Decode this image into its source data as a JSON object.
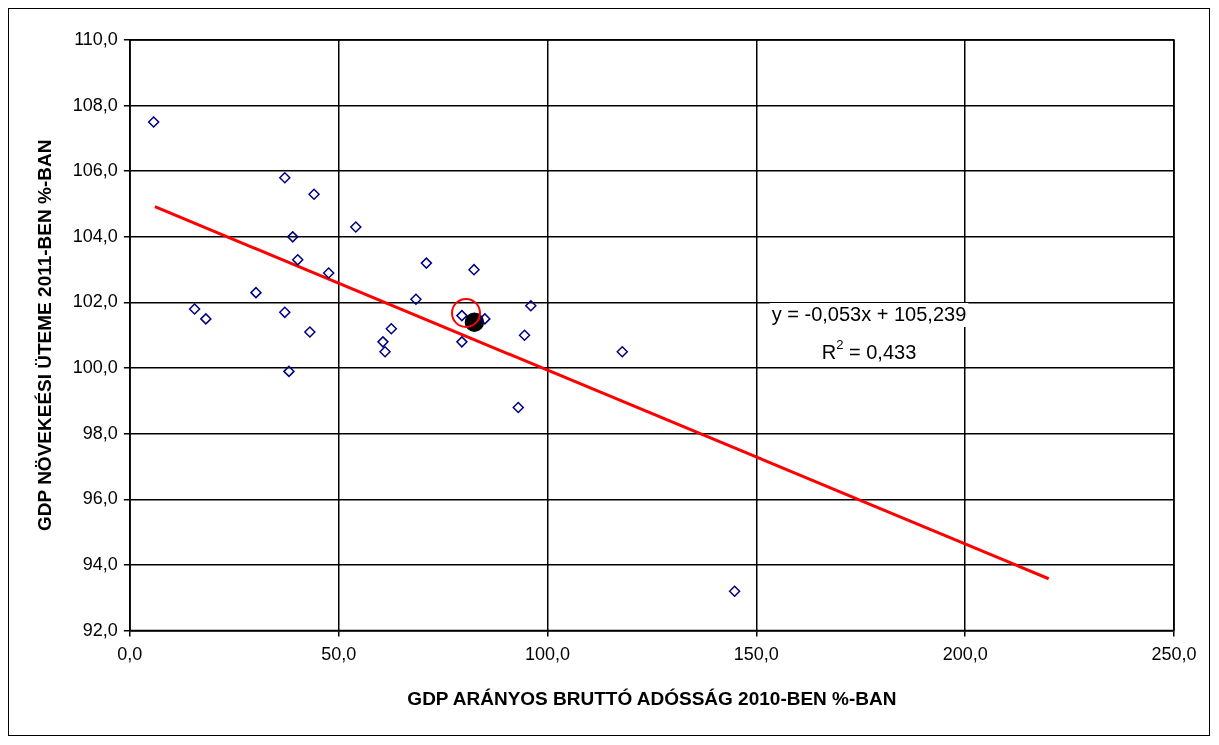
{
  "chart_data": {
    "type": "scatter",
    "xlabel": "GDP ARÁNYOS BRUTTÓ ADÓSSÁG 2010-BEN %-BAN",
    "ylabel": "GDP NÖVEKEÉSI ÜTEME 2011-BEN %-BAN",
    "xlim": [
      0,
      250
    ],
    "xticks": [
      {
        "value": 0,
        "label": "0,0"
      },
      {
        "value": 50,
        "label": "50,0"
      },
      {
        "value": 100,
        "label": "100,0"
      },
      {
        "value": 150,
        "label": "150,0"
      },
      {
        "value": 200,
        "label": "200,0"
      },
      {
        "value": 250,
        "label": "250,0"
      }
    ],
    "ylim": [
      92,
      110
    ],
    "yticks": [
      {
        "value": 92,
        "label": "92,0"
      },
      {
        "value": 94,
        "label": "94,0"
      },
      {
        "value": 96,
        "label": "96,0"
      },
      {
        "value": 98,
        "label": "98,0"
      },
      {
        "value": 100,
        "label": "100,0"
      },
      {
        "value": 102,
        "label": "102,0"
      },
      {
        "value": 104,
        "label": "104,0"
      },
      {
        "value": 106,
        "label": "106,0"
      },
      {
        "value": 108,
        "label": "108,0"
      },
      {
        "value": 110,
        "label": "110,0"
      }
    ],
    "grid": true,
    "marker": "diamond",
    "series": [
      {
        "type": "scatter",
        "color": "#000080",
        "x": [
          5.7,
          37.1,
          44.1,
          54.1,
          39.0,
          40.2,
          47.6,
          30.2,
          15.5,
          18.2,
          37.1,
          43.1,
          38.1,
          62.6,
          60.6,
          61.1,
          71.0,
          82.4,
          68.5,
          96.0,
          79.5,
          79.5,
          85.0,
          94.5,
          117.9,
          93.0,
          144.8
        ],
        "values": [
          107.5,
          105.8,
          105.3,
          104.3,
          104.0,
          103.3,
          102.9,
          102.3,
          101.8,
          101.5,
          101.7,
          101.1,
          99.9,
          101.2,
          100.8,
          100.5,
          103.2,
          103.0,
          102.1,
          101.9,
          101.6,
          100.8,
          101.5,
          101.0,
          100.5,
          98.8,
          93.2
        ]
      },
      {
        "type": "scatter",
        "marker": "circle",
        "color": "#000000",
        "x": [
          82.5
        ],
        "values": [
          101.4
        ]
      },
      {
        "type": "line",
        "marker": "none",
        "color": "#ff0000",
        "x": [
          6,
          220
        ],
        "values": [
          104.92,
          93.58
        ]
      }
    ],
    "annotations": [
      "y = -0,053x + 105,239",
      "R$^{2}$ = 0,433"
    ]
  }
}
